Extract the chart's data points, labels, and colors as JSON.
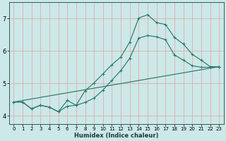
{
  "xlabel": "Humidex (Indice chaleur)",
  "bg_color": "#cce8e8",
  "grid_color": "#e8a0a0",
  "line_color": "#2a7a6a",
  "xlim": [
    -0.5,
    23.5
  ],
  "ylim": [
    3.75,
    7.5
  ],
  "xticks": [
    0,
    1,
    2,
    3,
    4,
    5,
    6,
    7,
    8,
    9,
    10,
    11,
    12,
    13,
    14,
    15,
    16,
    17,
    18,
    19,
    20,
    21,
    22,
    23
  ],
  "yticks": [
    4,
    5,
    6,
    7
  ],
  "curve1_x": [
    0,
    23
  ],
  "curve1_y": [
    4.43,
    5.52
  ],
  "curve2_x": [
    0,
    1,
    2,
    3,
    4,
    5,
    6,
    7,
    8,
    9,
    10,
    11,
    12,
    13,
    14,
    15,
    16,
    17,
    18,
    19,
    20,
    21,
    22,
    23
  ],
  "curve2_y": [
    4.43,
    4.43,
    4.22,
    4.33,
    4.27,
    4.13,
    4.3,
    4.33,
    4.42,
    4.55,
    4.8,
    5.1,
    5.4,
    5.78,
    6.4,
    6.48,
    6.44,
    6.35,
    5.88,
    5.72,
    5.55,
    5.5,
    5.5,
    5.52
  ],
  "curve3_x": [
    0,
    1,
    2,
    3,
    4,
    5,
    6,
    7,
    8,
    9,
    10,
    11,
    12,
    13,
    14,
    15,
    16,
    17,
    18,
    19,
    20,
    21,
    22,
    23
  ],
  "curve3_y": [
    4.43,
    4.43,
    4.22,
    4.33,
    4.27,
    4.13,
    4.48,
    4.33,
    4.78,
    5.02,
    5.3,
    5.58,
    5.82,
    6.28,
    7.02,
    7.12,
    6.88,
    6.82,
    6.42,
    6.22,
    5.9,
    5.72,
    5.52,
    5.52
  ],
  "xlabel_fontsize": 6.0,
  "tick_fontsize_x": 5.0,
  "tick_fontsize_y": 6.0
}
